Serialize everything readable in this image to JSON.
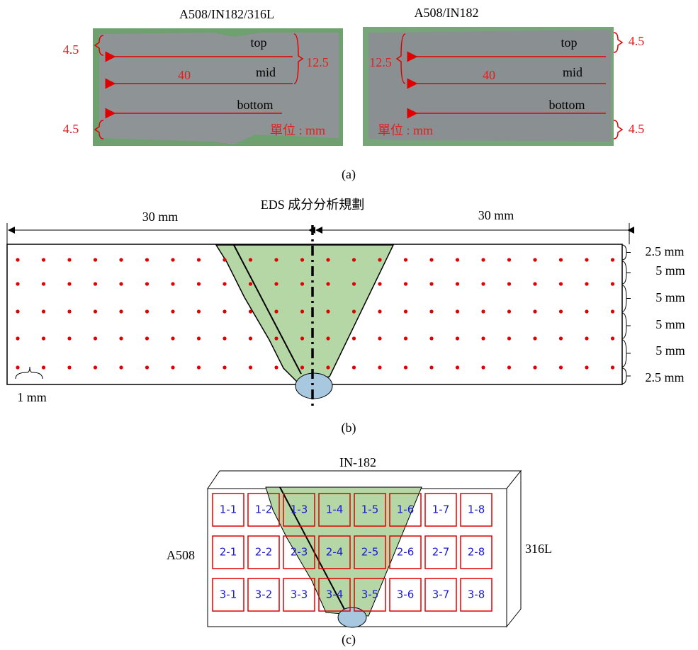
{
  "panel_a": {
    "left": {
      "title": "A508/IN182/316L",
      "labels": [
        "top",
        "mid",
        "bottom"
      ],
      "length": "40",
      "height": "12.5",
      "edge_top": "4.5",
      "edge_bottom": "4.5",
      "unit": "單位 : mm"
    },
    "right": {
      "title": "A508/IN182",
      "labels": [
        "top",
        "mid",
        "bottom"
      ],
      "length": "40",
      "height": "12.5",
      "edge_top": "4.5",
      "edge_bottom": "4.5",
      "unit": "單位 : mm"
    },
    "caption": "(a)"
  },
  "panel_b": {
    "title": "EDS 成分分析規劃",
    "left_width": "30 mm",
    "right_width": "30 mm",
    "dot_spacing": "1 mm",
    "row_spacings": [
      "2.5 mm",
      "5 mm",
      "5 mm",
      "5 mm",
      "5 mm",
      "2.5 mm"
    ],
    "caption": "(b)"
  },
  "panel_c": {
    "top": "IN-182",
    "left": "A508",
    "right": "316L",
    "cells": [
      [
        "1-1",
        "1-2",
        "1-3",
        "1-4",
        "1-5",
        "1-6",
        "1-7",
        "1-8"
      ],
      [
        "2-1",
        "2-2",
        "2-3",
        "2-4",
        "2-5",
        "2-6",
        "2-7",
        "2-8"
      ],
      [
        "3-1",
        "3-2",
        "3-3",
        "3-4",
        "3-5",
        "3-6",
        "3-7",
        "3-8"
      ]
    ],
    "caption": "(c)"
  }
}
